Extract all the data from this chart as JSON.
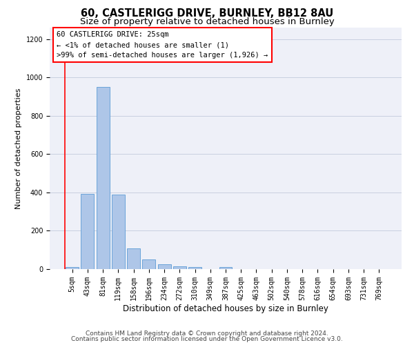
{
  "title1": "60, CASTLERIGG DRIVE, BURNLEY, BB12 8AU",
  "title2": "Size of property relative to detached houses in Burnley",
  "xlabel": "Distribution of detached houses by size in Burnley",
  "ylabel": "Number of detached properties",
  "categories": [
    "5sqm",
    "43sqm",
    "81sqm",
    "119sqm",
    "158sqm",
    "196sqm",
    "234sqm",
    "272sqm",
    "310sqm",
    "349sqm",
    "387sqm",
    "425sqm",
    "463sqm",
    "502sqm",
    "540sqm",
    "578sqm",
    "616sqm",
    "654sqm",
    "693sqm",
    "731sqm",
    "769sqm"
  ],
  "values": [
    12,
    393,
    950,
    390,
    107,
    52,
    25,
    15,
    12,
    0,
    10,
    0,
    0,
    0,
    0,
    0,
    0,
    0,
    0,
    0,
    0
  ],
  "bar_color": "#aec6e8",
  "bar_edgecolor": "#5b9bd5",
  "annotation_box_text": "60 CASTLERIGG DRIVE: 25sqm\n← <1% of detached houses are smaller (1)\n>99% of semi-detached houses are larger (1,926) →",
  "ylim": [
    0,
    1260
  ],
  "yticks": [
    0,
    200,
    400,
    600,
    800,
    1000,
    1200
  ],
  "grid_color": "#c8d0e0",
  "background_color": "#eef0f8",
  "footer1": "Contains HM Land Registry data © Crown copyright and database right 2024.",
  "footer2": "Contains public sector information licensed under the Open Government Licence v3.0.",
  "title1_fontsize": 10.5,
  "title2_fontsize": 9.5,
  "xlabel_fontsize": 8.5,
  "ylabel_fontsize": 8,
  "tick_fontsize": 7,
  "annotation_fontsize": 7.5,
  "footer_fontsize": 6.5
}
